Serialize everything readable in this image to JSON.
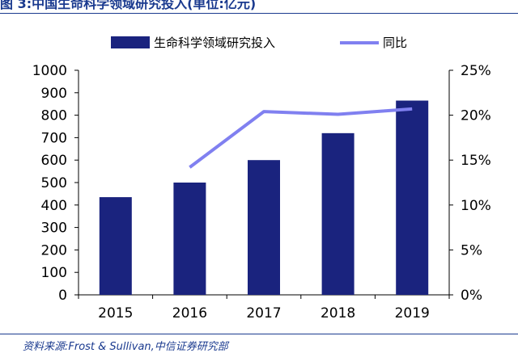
{
  "figure": {
    "title": "图 3:中国生命科学领域研究投入(单位:亿元)",
    "source": "资料来源:Frost & Sullivan,中信证券研究部"
  },
  "colors": {
    "bar": "#1a237e",
    "line": "#8080f0",
    "axis": "#000000",
    "text": "#000000"
  },
  "chart_data": {
    "type": "bar",
    "categories": [
      "2015",
      "2016",
      "2017",
      "2018",
      "2019"
    ],
    "series": [
      {
        "name": "生命科学领域研究投入",
        "type": "bar",
        "axis": "left",
        "values": [
          435,
          500,
          600,
          720,
          865
        ]
      },
      {
        "name": "同比",
        "type": "line",
        "axis": "right",
        "values": [
          null,
          0.142,
          0.204,
          0.201,
          0.207
        ]
      }
    ],
    "y_left": {
      "min": 0,
      "max": 1000,
      "ticks": [
        "0",
        "100",
        "200",
        "300",
        "400",
        "500",
        "600",
        "700",
        "800",
        "900",
        "1000"
      ]
    },
    "y_right": {
      "min": 0,
      "max": 0.25,
      "ticks": [
        "0%",
        "5%",
        "10%",
        "15%",
        "20%",
        "25%"
      ]
    },
    "legend_position": "top-center",
    "grid": false
  }
}
